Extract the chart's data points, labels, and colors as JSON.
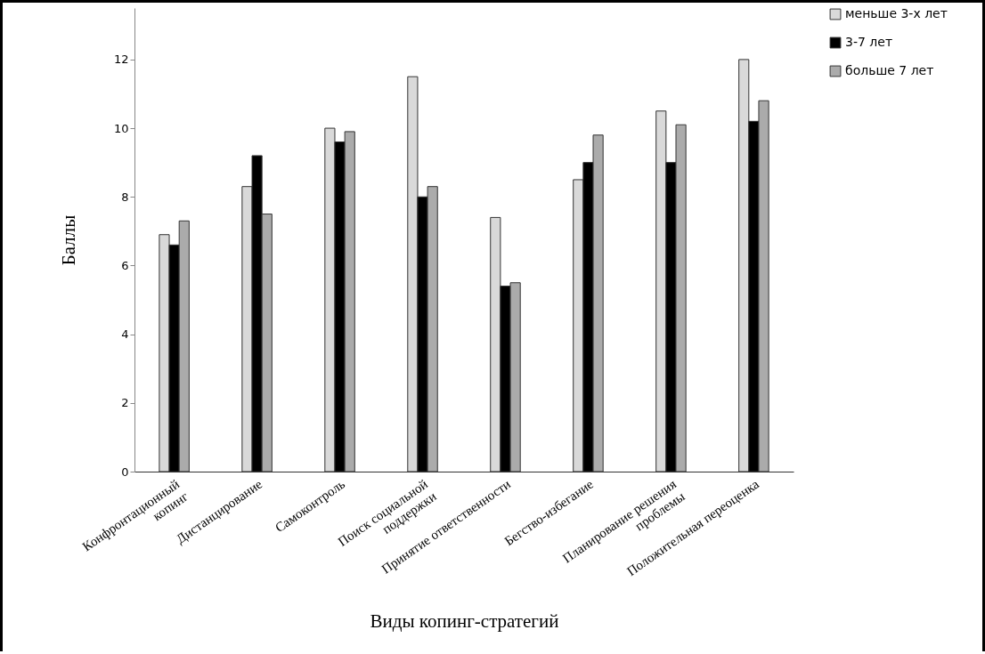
{
  "chart_data": {
    "type": "bar",
    "xlabel": "Виды копинг-стратегий",
    "ylabel": "Баллы",
    "categories": [
      "Конфронтационный\nкопинг",
      "Дистанцирование",
      "Самоконтроль",
      "Поиск социальной\nподдержки",
      "Принятие ответственности",
      "Бегство-избегание",
      "Планирование решения\nпроблемы",
      "Положительная переоценка"
    ],
    "series": [
      {
        "name": "меньше 3-х лет",
        "color": "#d9d9d9",
        "values": [
          6.9,
          8.3,
          10.0,
          11.5,
          7.4,
          8.5,
          10.5,
          12.0
        ]
      },
      {
        "name": "3-7 лет",
        "color": "#000000",
        "values": [
          6.6,
          9.2,
          9.6,
          8.0,
          5.4,
          9.0,
          9.0,
          10.2
        ]
      },
      {
        "name": "больше 7 лет",
        "color": "#ababab",
        "values": [
          7.3,
          7.5,
          9.9,
          8.3,
          5.5,
          9.8,
          10.1,
          10.8
        ]
      }
    ],
    "ylim": [
      0,
      13.5
    ],
    "yticks": [
      0,
      2,
      4,
      6,
      8,
      10,
      12
    ],
    "legend": "right"
  }
}
